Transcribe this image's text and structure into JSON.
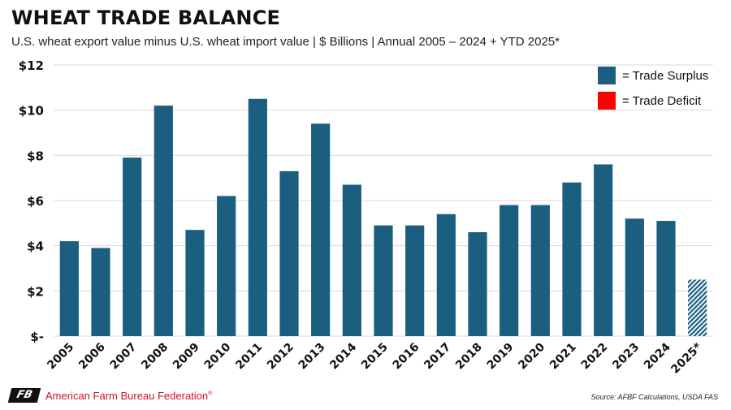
{
  "header": {
    "title": "WHEAT TRADE BALANCE",
    "subtitle": "U.S. wheat export value minus U.S. wheat import value | $ Billions | Annual 2005 – 2024 + YTD 2025*"
  },
  "footer": {
    "logo_text": "FB",
    "organization": "American Farm Bureau Federation",
    "trademark": "®",
    "source": "Source: AFBF Calculations, USDA FAS"
  },
  "colors": {
    "surplus": "#1b5e80",
    "deficit": "#ff0000",
    "grid": "#d9d9d9",
    "brand_red": "#c8102e"
  },
  "chart_data": {
    "type": "bar",
    "categories": [
      "2005",
      "2006",
      "2007",
      "2008",
      "2009",
      "2010",
      "2011",
      "2012",
      "2013",
      "2014",
      "2015",
      "2016",
      "2017",
      "2018",
      "2019",
      "2020",
      "2021",
      "2022",
      "2023",
      "2024",
      "2025*"
    ],
    "values": [
      4.2,
      3.9,
      7.9,
      10.2,
      4.7,
      6.2,
      10.5,
      7.3,
      9.4,
      6.7,
      4.9,
      4.9,
      5.4,
      4.6,
      5.8,
      5.8,
      6.8,
      7.6,
      5.2,
      5.1,
      2.5
    ],
    "hatched_categories": [
      "2025*"
    ],
    "ylim": [
      0,
      12
    ],
    "yticks": [
      0,
      2,
      4,
      6,
      8,
      10,
      12
    ],
    "ytick_labels": [
      "$-",
      "$2",
      "$4",
      "$6",
      "$8",
      "$10",
      "$12"
    ],
    "grid": true,
    "legend": {
      "placement": "top-right",
      "entries": [
        {
          "label": "= Trade Surplus",
          "color": "#1b5e80"
        },
        {
          "label": "= Trade Deficit",
          "color": "#ff0000"
        }
      ]
    }
  }
}
